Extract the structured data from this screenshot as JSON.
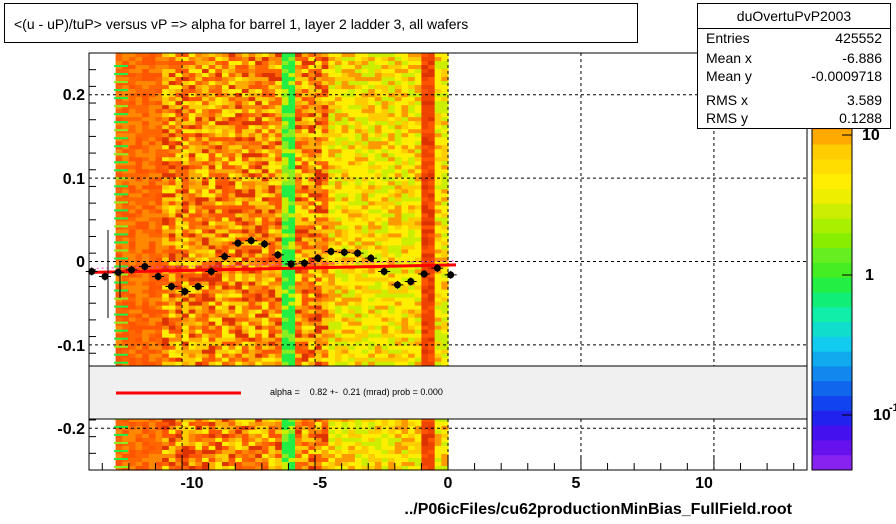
{
  "title": "<(u - uP)/tuP> versus   vP => alpha for barrel 1, layer 2 ladder 3, all wafers",
  "footer": "../P06icFiles/cu62productionMinBias_FullField.root",
  "stats": {
    "name": "duOvertuPvP2003",
    "rows": [
      {
        "label": "Entries",
        "value": "425552"
      },
      {
        "label": "Mean x",
        "value": "-6.886"
      },
      {
        "label": "Mean y",
        "value": "-0.0009718"
      },
      {
        "label": "RMS x",
        "value": "3.589"
      },
      {
        "label": "RMS y",
        "value": "0.1288"
      }
    ]
  },
  "legend": {
    "fit_text": "alpha =    0.82 +-  0.21 (mrad) prob = 0.000",
    "line_color": "#ff0000"
  },
  "zaxis": {
    "labels": [
      "10",
      "1",
      "10"
    ],
    "superscript": "-1",
    "scale": "log"
  },
  "chart_data": {
    "type": "heatmap",
    "xlim": [
      -13.5,
      13.5
    ],
    "ylim": [
      -0.25,
      0.25
    ],
    "xticks": [
      -10,
      -5,
      0,
      5,
      10
    ],
    "xtick_labels": [
      "-10",
      "-5",
      "0",
      "5",
      "10"
    ],
    "yticks": [
      -0.2,
      -0.1,
      0,
      0.1,
      0.2
    ],
    "ytick_labels": [
      "-0.2",
      "-0.1",
      "0",
      "0.1",
      "0.2"
    ],
    "grid": true,
    "heatmap_x_range": [
      -12.5,
      0
    ],
    "profile": {
      "name": "profile",
      "marker_color": "#000000",
      "points": [
        {
          "x": -13.4,
          "y": -0.012
        },
        {
          "x": -12.9,
          "y": -0.018
        },
        {
          "x": -12.4,
          "y": -0.013
        },
        {
          "x": -11.9,
          "y": -0.01
        },
        {
          "x": -11.4,
          "y": -0.006
        },
        {
          "x": -10.9,
          "y": -0.018
        },
        {
          "x": -10.4,
          "y": -0.03
        },
        {
          "x": -9.9,
          "y": -0.036
        },
        {
          "x": -9.4,
          "y": -0.03
        },
        {
          "x": -8.9,
          "y": -0.012
        },
        {
          "x": -8.4,
          "y": 0.006
        },
        {
          "x": -7.9,
          "y": 0.022
        },
        {
          "x": -7.4,
          "y": 0.025
        },
        {
          "x": -6.9,
          "y": 0.021
        },
        {
          "x": -6.4,
          "y": 0.008
        },
        {
          "x": -5.9,
          "y": -0.003
        },
        {
          "x": -5.4,
          "y": -0.002
        },
        {
          "x": -4.9,
          "y": 0.004
        },
        {
          "x": -4.4,
          "y": 0.012
        },
        {
          "x": -3.9,
          "y": 0.011
        },
        {
          "x": -3.4,
          "y": 0.01
        },
        {
          "x": -2.9,
          "y": 0.004
        },
        {
          "x": -2.4,
          "y": -0.012
        },
        {
          "x": -1.9,
          "y": -0.028
        },
        {
          "x": -1.4,
          "y": -0.024
        },
        {
          "x": -0.9,
          "y": -0.015
        },
        {
          "x": -0.4,
          "y": -0.008
        },
        {
          "x": 0.1,
          "y": -0.016
        }
      ]
    },
    "fit_line": {
      "color": "#ff0000",
      "x": [
        -13.4,
        0.3
      ],
      "y": [
        -0.013,
        -0.004
      ]
    }
  }
}
